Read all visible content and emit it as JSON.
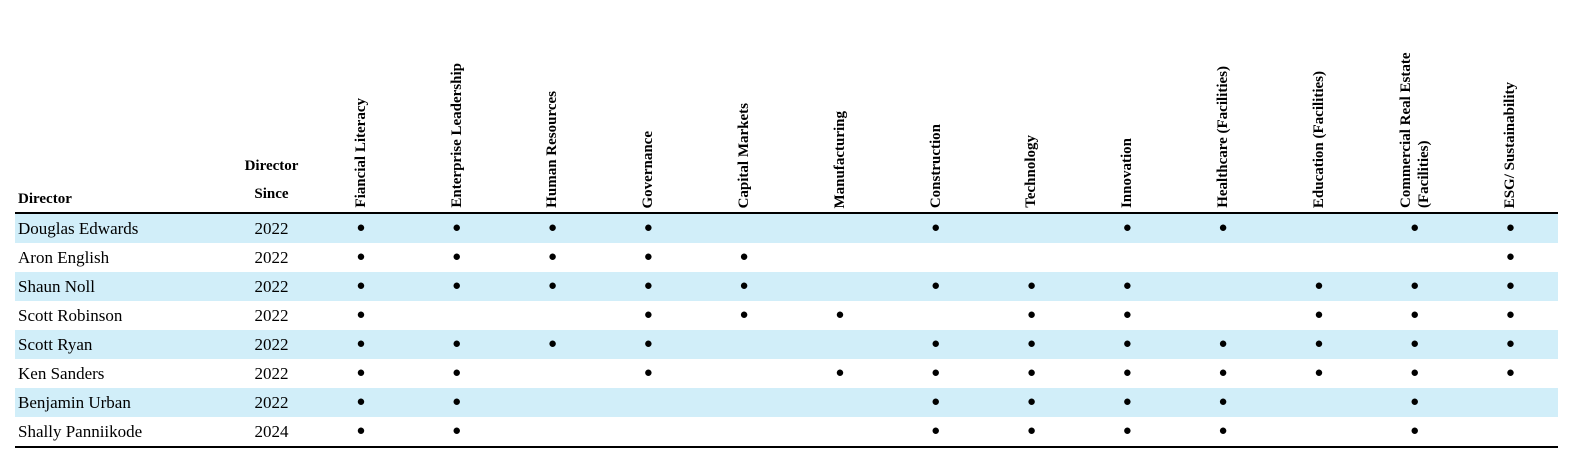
{
  "table": {
    "header": {
      "director": "Director",
      "since": "Director Since"
    },
    "columns": [
      "Fiancial Literacy",
      "Enterprise Leadership",
      "Human Resources",
      "Governance",
      "Capital Markets",
      "Manufacturing",
      "Construction",
      "Technology",
      "Innovation",
      "Healthcare (Facilities)",
      "Education (Facilities)",
      "Commercial Real Estate (Facilities)",
      "ESG/ Sustainability"
    ],
    "marker": "●",
    "rows": [
      {
        "name": "Douglas Edwards",
        "since": "2022",
        "skills": [
          true,
          true,
          true,
          true,
          false,
          false,
          true,
          false,
          true,
          true,
          false,
          true,
          true
        ]
      },
      {
        "name": "Aron English",
        "since": "2022",
        "skills": [
          true,
          true,
          true,
          true,
          true,
          false,
          false,
          false,
          false,
          false,
          false,
          false,
          true
        ]
      },
      {
        "name": "Shaun Noll",
        "since": "2022",
        "skills": [
          true,
          true,
          true,
          true,
          true,
          false,
          true,
          true,
          true,
          false,
          true,
          true,
          true
        ]
      },
      {
        "name": "Scott Robinson",
        "since": "2022",
        "skills": [
          true,
          false,
          false,
          true,
          true,
          true,
          false,
          true,
          true,
          false,
          true,
          true,
          true
        ]
      },
      {
        "name": "Scott Ryan",
        "since": "2022",
        "skills": [
          true,
          true,
          true,
          true,
          false,
          false,
          true,
          true,
          true,
          true,
          true,
          true,
          true
        ]
      },
      {
        "name": "Ken Sanders",
        "since": "2022",
        "skills": [
          true,
          true,
          false,
          true,
          false,
          true,
          true,
          true,
          true,
          true,
          true,
          true,
          true
        ]
      },
      {
        "name": "Benjamin Urban",
        "since": "2022",
        "skills": [
          true,
          true,
          false,
          false,
          false,
          false,
          true,
          true,
          true,
          true,
          false,
          true,
          false
        ]
      },
      {
        "name": "Shally Panniikode",
        "since": "2024",
        "skills": [
          true,
          true,
          false,
          false,
          false,
          false,
          true,
          true,
          true,
          true,
          false,
          true,
          false
        ]
      }
    ]
  }
}
